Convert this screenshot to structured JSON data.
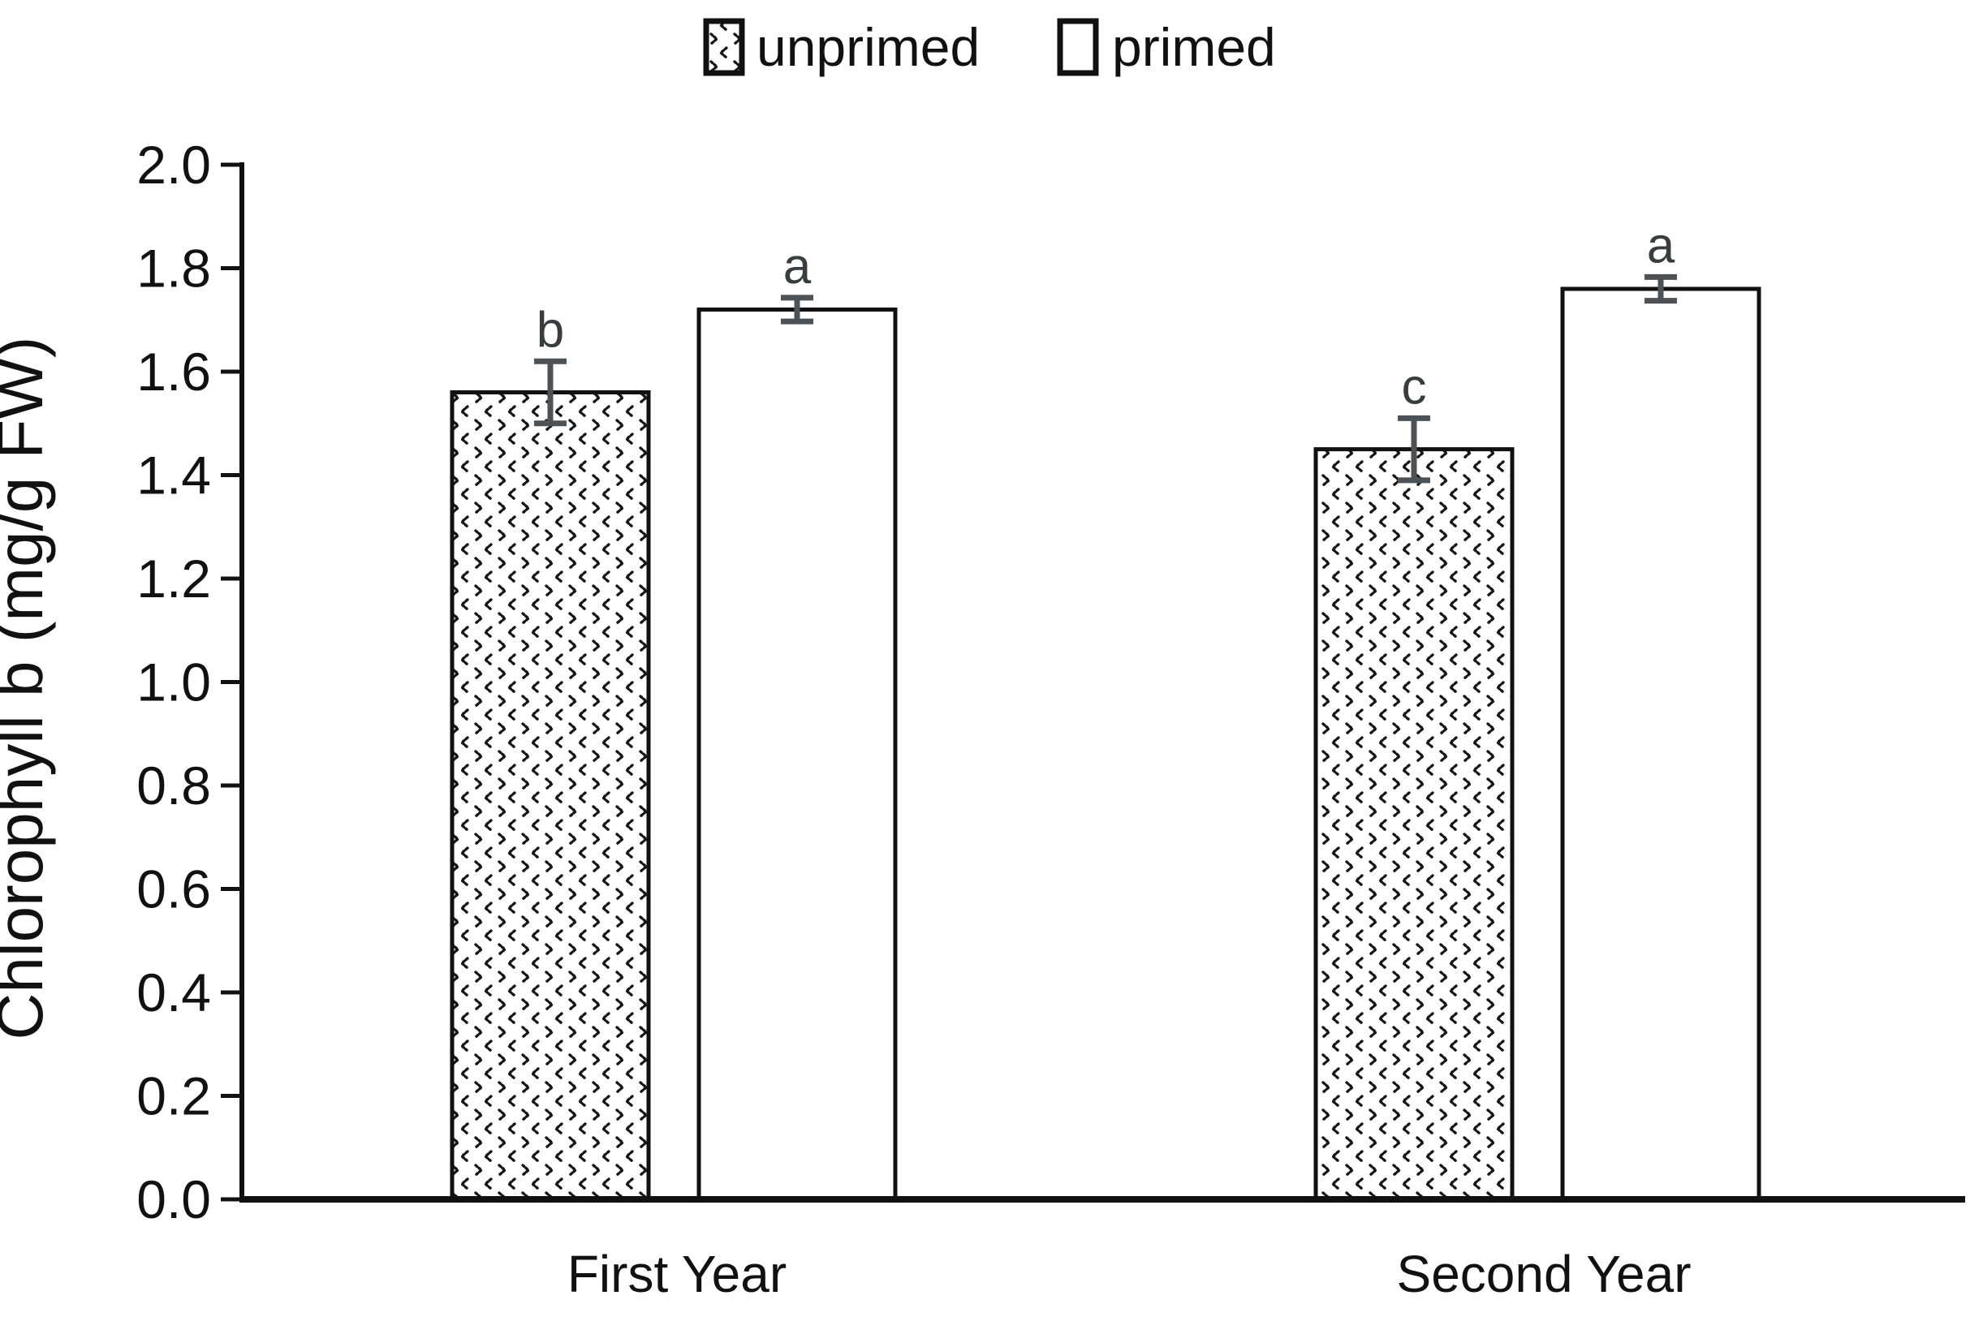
{
  "legend": {
    "position": "top-center",
    "items": [
      {
        "label": "unprimed",
        "swatch": "dotted-pattern-square"
      },
      {
        "label": "primed",
        "swatch": "white-square"
      }
    ]
  },
  "y_axis": {
    "label": "Chlorophyll b (mg/g FW)",
    "ticks": [
      "2.0",
      "1.8",
      "1.6",
      "1.4",
      "1.2",
      "1.0",
      "0.8",
      "0.6",
      "0.4",
      "0.2",
      "0.0"
    ]
  },
  "chart_data": {
    "type": "bar",
    "title": "",
    "categories": [
      "First Year",
      "Second Year"
    ],
    "series": [
      {
        "name": "unprimed",
        "style": "dotted-pattern",
        "values": [
          1.56,
          1.45
        ],
        "error_bars": [
          0.06,
          0.06
        ],
        "sig_letters": [
          "b",
          "c"
        ]
      },
      {
        "name": "primed",
        "style": "white",
        "values": [
          1.72,
          1.76
        ],
        "error_bars": [
          0.023,
          0.023
        ],
        "sig_letters": [
          "a",
          "a"
        ]
      }
    ],
    "xlabel": "",
    "ylabel": "Chlorophyll b (mg/g FW)",
    "ylim": [
      0.0,
      2.0
    ],
    "ytick_step": 0.2,
    "grid": false,
    "legend_position": "top"
  },
  "colors": {
    "background": "#ffffff",
    "bar_fill": "#ffffff",
    "bar_border": "#111111",
    "pattern_mark": "#161616",
    "axis": "#111111",
    "text": "#111111",
    "error_bar": "#4c5256",
    "sig_letter": "#383d40"
  }
}
